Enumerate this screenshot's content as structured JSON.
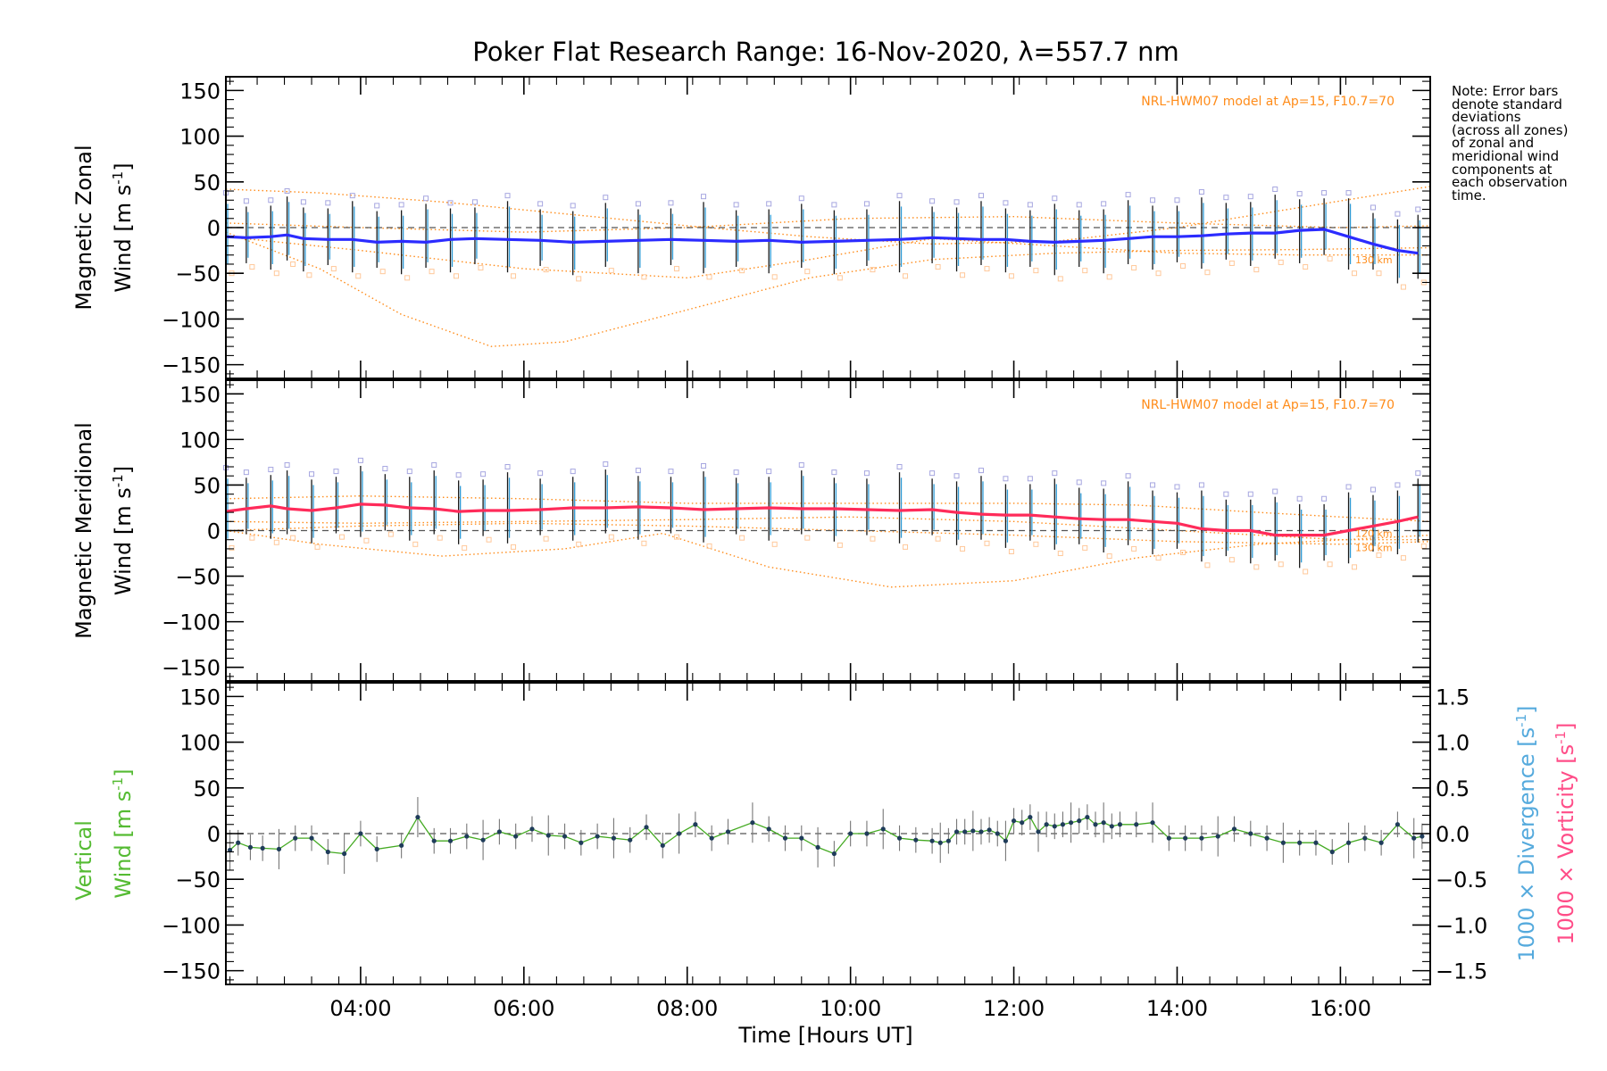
{
  "title": "Poker Flat Research Range: 16-Nov-2020, λ=557.7 nm",
  "note_lines": [
    "Note: Error bars",
    "denote standard",
    "deviations",
    "(across all zones)",
    "of zonal and",
    "meridional wind",
    "components at",
    "each observation",
    "time."
  ],
  "colors": {
    "zonal_line": "#2b2bff",
    "meridional_line": "#ff2b5a",
    "vertical_line": "#44aa22",
    "model": "#ff8c1a",
    "scatter": "#a6a6e0",
    "scatter_low": "#ffc89a",
    "divergence": "#55aadd",
    "vorticity": "#ff4d88",
    "vertical_label": "#55bb33"
  },
  "chart_data": [
    {
      "type": "line",
      "panel": "zonal",
      "ylabel_line1": "Magnetic Zonal",
      "ylabel_wind": "Wind",
      "ylabel_unit": "[m s",
      "ylabel_sup": "-1",
      "ylabel_close": "]",
      "model_label": "NRL-HWM07 model at Ap=15, F10.7=70",
      "model_alt_labels": [
        "130 km"
      ],
      "xlim": [
        2.35,
        17.1
      ],
      "ylim": [
        -165,
        165
      ],
      "yticks": [
        -150,
        -100,
        -50,
        0,
        50,
        100,
        150
      ],
      "tick_labels": [
        "−150",
        "−100",
        "−50",
        "0",
        "50",
        "100",
        "150"
      ],
      "zero_line": true,
      "series": [
        {
          "x": [
            2.35,
            2.6,
            2.9,
            3.1,
            3.3,
            3.6,
            3.9,
            4.2,
            4.5,
            4.8,
            5.1,
            5.4,
            5.8,
            6.2,
            6.6,
            7.0,
            7.4,
            7.8,
            8.2,
            8.6,
            9.0,
            9.4,
            9.8,
            10.2,
            10.6,
            11.0,
            11.3,
            11.6,
            11.9,
            12.2,
            12.5,
            12.8,
            13.1,
            13.4,
            13.7,
            14.0,
            14.3,
            14.6,
            14.9,
            15.2,
            15.5,
            15.8,
            16.1,
            16.4,
            16.7,
            16.95
          ],
          "values": [
            -10,
            -11,
            -10,
            -8,
            -12,
            -13,
            -13,
            -16,
            -15,
            -16,
            -13,
            -12,
            -13,
            -14,
            -16,
            -15,
            -14,
            -13,
            -14,
            -15,
            -14,
            -16,
            -15,
            -14,
            -13,
            -11,
            -12,
            -13,
            -13,
            -15,
            -16,
            -15,
            -14,
            -12,
            -10,
            -10,
            -9,
            -7,
            -6,
            -6,
            -3,
            -2,
            -10,
            -18,
            -25,
            -28
          ]
        }
      ],
      "model_curves": [
        {
          "x": [
            2.35,
            3.5,
            5.0,
            6.5,
            8.0,
            9.5,
            11.0,
            12.5,
            14.0,
            15.5,
            17.1
          ],
          "values": [
            42,
            38,
            28,
            15,
            2,
            -10,
            -18,
            -15,
            0,
            22,
            45
          ]
        },
        {
          "x": [
            2.35,
            3.5,
            4.5,
            5.6,
            6.5,
            8.0,
            9.5,
            11.0,
            12.5,
            14.0,
            15.5,
            17.1
          ],
          "values": [
            -5,
            -45,
            -95,
            -130,
            -125,
            -90,
            -55,
            -35,
            -28,
            -25,
            -24,
            -22
          ]
        },
        {
          "x": [
            2.35,
            4.0,
            6.0,
            8.0,
            9.5,
            11.0,
            12.5,
            14.0,
            15.5,
            17.1
          ],
          "values": [
            -10,
            -25,
            -45,
            -55,
            -35,
            -12,
            -20,
            -28,
            -30,
            -30
          ]
        },
        {
          "x": [
            2.35,
            4.0,
            6.0,
            8.0,
            10.0,
            12.0,
            14.0,
            16.0,
            17.1
          ],
          "values": [
            5,
            0,
            -5,
            0,
            10,
            12,
            5,
            0,
            2
          ]
        }
      ]
    },
    {
      "type": "line",
      "panel": "meridional",
      "ylabel_line1": "Magnetic Meridional",
      "ylabel_wind": "Wind",
      "ylabel_unit": "[m s",
      "ylabel_sup": "-1",
      "ylabel_close": "]",
      "model_label": "NRL-HWM07 model at Ap=15, F10.7=70",
      "model_alt_labels": [
        "120 km",
        "130 km"
      ],
      "xlim": [
        2.35,
        17.1
      ],
      "ylim": [
        -165,
        165
      ],
      "yticks": [
        -150,
        -100,
        -50,
        0,
        50,
        100,
        150
      ],
      "tick_labels": [
        "−150",
        "−100",
        "−50",
        "0",
        "50",
        "100",
        "150"
      ],
      "zero_line": true,
      "series": [
        {
          "x": [
            2.35,
            2.6,
            2.9,
            3.1,
            3.4,
            3.7,
            4.0,
            4.3,
            4.6,
            4.9,
            5.2,
            5.5,
            5.8,
            6.2,
            6.6,
            7.0,
            7.4,
            7.8,
            8.2,
            8.6,
            9.0,
            9.4,
            9.8,
            10.2,
            10.6,
            11.0,
            11.3,
            11.6,
            11.9,
            12.2,
            12.5,
            12.8,
            13.1,
            13.4,
            13.7,
            14.0,
            14.3,
            14.6,
            14.9,
            15.2,
            15.5,
            15.8,
            16.1,
            16.4,
            16.7,
            16.95
          ],
          "values": [
            21,
            24,
            27,
            24,
            22,
            25,
            29,
            28,
            25,
            24,
            21,
            22,
            22,
            23,
            25,
            25,
            26,
            25,
            23,
            24,
            25,
            24,
            24,
            23,
            22,
            23,
            20,
            18,
            17,
            17,
            15,
            13,
            12,
            12,
            10,
            8,
            2,
            0,
            0,
            -5,
            -5,
            -5,
            0,
            5,
            10,
            15
          ]
        }
      ],
      "model_curves": [
        {
          "x": [
            2.35,
            3.5,
            5.0,
            6.5,
            7.7,
            9.0,
            10.5,
            12.0,
            13.5,
            15.0,
            17.1
          ],
          "values": [
            0,
            -15,
            -28,
            -20,
            -3,
            -40,
            -62,
            -55,
            -30,
            -15,
            -5
          ]
        },
        {
          "x": [
            2.35,
            4.0,
            6.0,
            8.0,
            10.0,
            12.0,
            13.5,
            15.0,
            16.0,
            17.1
          ],
          "values": [
            35,
            38,
            35,
            30,
            30,
            30,
            28,
            20,
            15,
            10
          ]
        },
        {
          "x": [
            2.35,
            4.0,
            6.0,
            8.0,
            10.0,
            12.0,
            14.0,
            16.0,
            17.1
          ],
          "values": [
            10,
            8,
            10,
            12,
            15,
            10,
            0,
            -10,
            -10
          ]
        },
        {
          "x": [
            2.35,
            4.0,
            6.0,
            8.0,
            10.0,
            12.0,
            14.0,
            16.0,
            17.1
          ],
          "values": [
            0,
            5,
            8,
            5,
            0,
            -5,
            -12,
            -15,
            -12
          ]
        }
      ]
    },
    {
      "type": "line",
      "panel": "vertical",
      "ylabel_line1": "Vertical",
      "ylabel_wind": "Wind",
      "ylabel_unit": "[m s",
      "ylabel_sup": "-1",
      "ylabel_close": "]",
      "xlabel": "Time [Hours UT]",
      "xlim": [
        2.35,
        17.1
      ],
      "ylim": [
        -165,
        165
      ],
      "yticks": [
        -150,
        -100,
        -50,
        0,
        50,
        100,
        150
      ],
      "tick_labels": [
        "−150",
        "−100",
        "−50",
        "0",
        "50",
        "100",
        "150"
      ],
      "xticks": [
        4,
        6,
        8,
        10,
        12,
        14,
        16
      ],
      "xtick_labels": [
        "04:00",
        "06:00",
        "08:00",
        "10:00",
        "12:00",
        "14:00",
        "16:00"
      ],
      "right_axis": {
        "ylim": [
          -1.65,
          1.65
        ],
        "yticks": [
          -1.5,
          -1.0,
          -0.5,
          0.0,
          0.5,
          1.0,
          1.5
        ],
        "tick_labels": [
          "−1.5",
          "−1.0",
          "−0.5",
          "0.0",
          "0.5",
          "1.0",
          "1.5"
        ],
        "label_divergence": "1000 × Divergence [s",
        "label_vorticity": "1000 × Vorticity [s",
        "label_sup": "-1",
        "label_close": "]"
      },
      "zero_line": true,
      "series": [
        {
          "x": [
            2.4,
            2.5,
            2.65,
            2.8,
            3.0,
            3.2,
            3.4,
            3.6,
            3.8,
            4.0,
            4.2,
            4.5,
            4.7,
            4.9,
            5.1,
            5.3,
            5.5,
            5.7,
            5.9,
            6.1,
            6.3,
            6.5,
            6.7,
            6.9,
            7.1,
            7.3,
            7.5,
            7.7,
            7.9,
            8.1,
            8.3,
            8.5,
            8.8,
            9.0,
            9.2,
            9.4,
            9.6,
            9.8,
            10.0,
            10.2,
            10.4,
            10.6,
            10.8,
            11.0,
            11.1,
            11.2,
            11.3,
            11.4,
            11.5,
            11.6,
            11.7,
            11.8,
            11.9,
            12.0,
            12.1,
            12.2,
            12.3,
            12.4,
            12.5,
            12.6,
            12.7,
            12.8,
            12.9,
            13.0,
            13.1,
            13.2,
            13.3,
            13.5,
            13.7,
            13.9,
            14.1,
            14.3,
            14.5,
            14.7,
            14.9,
            15.1,
            15.3,
            15.5,
            15.7,
            15.9,
            16.1,
            16.3,
            16.5,
            16.7,
            16.9,
            17.0
          ],
          "values": [
            -18,
            -10,
            -15,
            -16,
            -17,
            -5,
            -5,
            -20,
            -22,
            0,
            -17,
            -13,
            18,
            -8,
            -8,
            -3,
            -7,
            2,
            -3,
            5,
            -2,
            -3,
            -10,
            -3,
            -5,
            -7,
            7,
            -13,
            0,
            10,
            -5,
            2,
            12,
            5,
            -5,
            -5,
            -15,
            -22,
            0,
            0,
            5,
            -5,
            -7,
            -8,
            -10,
            -8,
            2,
            2,
            3,
            2,
            4,
            0,
            -8,
            14,
            12,
            18,
            2,
            10,
            8,
            10,
            12,
            14,
            18,
            10,
            12,
            8,
            10,
            10,
            12,
            -5,
            -5,
            -5,
            -3,
            5,
            0,
            -5,
            -10,
            -10,
            -10,
            -20,
            -10,
            -5,
            -10,
            10,
            -5,
            -3
          ]
        }
      ]
    }
  ]
}
